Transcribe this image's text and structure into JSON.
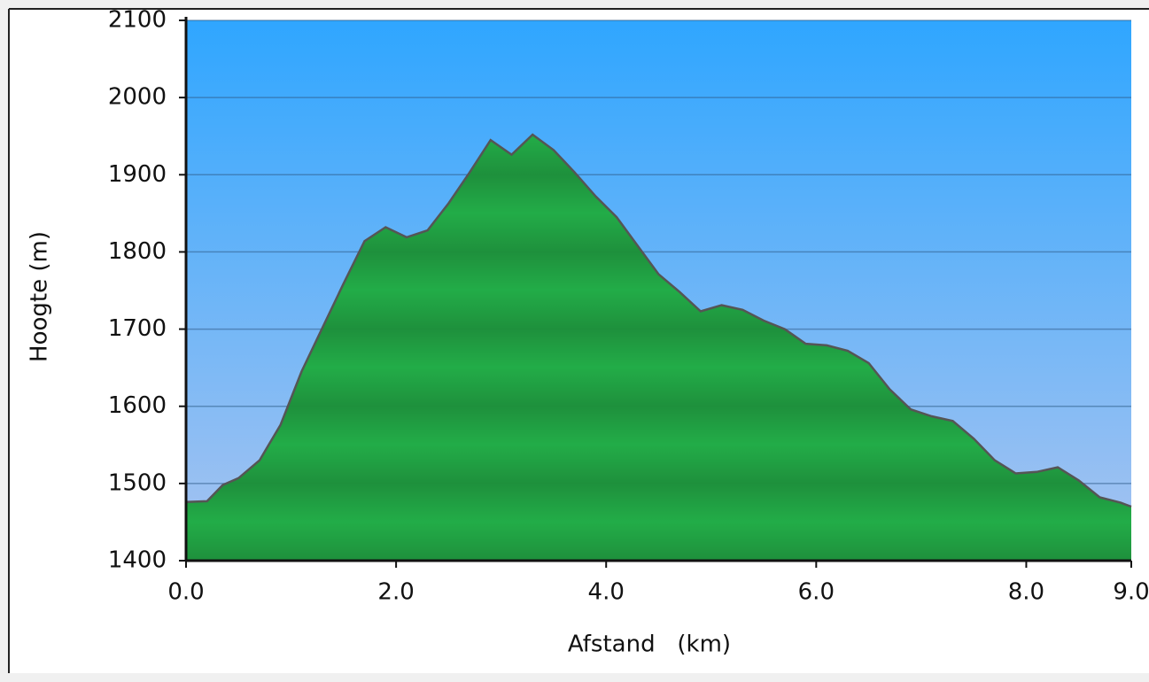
{
  "chart_data": {
    "type": "area",
    "x_label": "Afstand   (km)",
    "y_label": "Hoogte (m)",
    "x": [
      0,
      0.2,
      0.35,
      0.5,
      0.7,
      0.9,
      1.1,
      1.3,
      1.5,
      1.7,
      1.9,
      2.1,
      2.3,
      2.5,
      2.7,
      2.9,
      3.1,
      3.3,
      3.5,
      3.7,
      3.9,
      4.1,
      4.3,
      4.5,
      4.7,
      4.9,
      5.1,
      5.3,
      5.5,
      5.7,
      5.9,
      6.1,
      6.3,
      6.5,
      6.7,
      6.9,
      7.1,
      7.3,
      7.5,
      7.7,
      7.9,
      8.1,
      8.3,
      8.5,
      8.7,
      8.9,
      9.0
    ],
    "values": [
      1476,
      1477,
      1498,
      1507,
      1530,
      1576,
      1645,
      1702,
      1759,
      1814,
      1832,
      1819,
      1828,
      1863,
      1903,
      1945,
      1926,
      1952,
      1932,
      1903,
      1872,
      1845,
      1808,
      1771,
      1748,
      1723,
      1731,
      1725,
      1711,
      1700,
      1681,
      1679,
      1672,
      1656,
      1622,
      1596,
      1587,
      1581,
      1558,
      1530,
      1513,
      1515,
      1521,
      1504,
      1482,
      1475,
      1470
    ],
    "color": "#22a645",
    "xlim": [
      0,
      9.0
    ],
    "ylim": [
      1400,
      2100
    ],
    "xticks": [
      {
        "value": 0,
        "label": "0.0"
      },
      {
        "value": 2,
        "label": "2.0"
      },
      {
        "value": 4,
        "label": "4.0"
      },
      {
        "value": 6,
        "label": "6.0"
      },
      {
        "value": 8,
        "label": "8.0"
      },
      {
        "value": 9,
        "label": "9.0"
      }
    ],
    "yticks": [
      1400,
      1500,
      1600,
      1700,
      1800,
      1900,
      2000,
      2100
    ],
    "grid": true
  }
}
